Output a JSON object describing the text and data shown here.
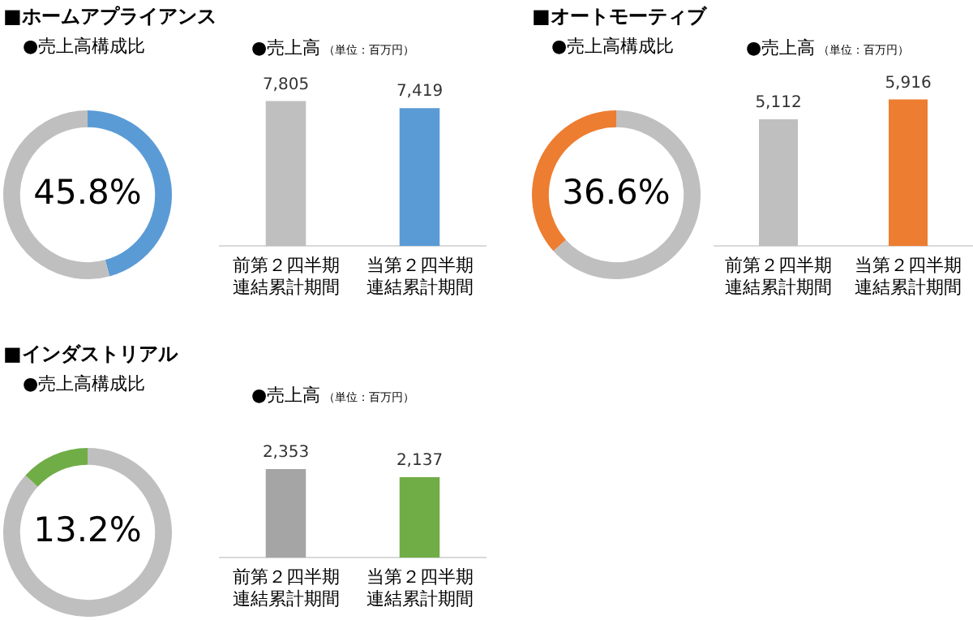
{
  "chart_data": [
    {
      "type": "donut",
      "title": "■ホームアプライアンス",
      "subtitle": "●売上高構成比",
      "categories": [
        null,
        null
      ],
      "values": [
        45.8,
        54.2
      ],
      "colors": [
        "#5b9bd5",
        "#bfbfbf"
      ],
      "value_labels": [
        "45.8%",
        null
      ]
    },
    {
      "type": "bar",
      "title": "●売上高",
      "subtitle": "（単位：百万円）",
      "categories": [
        "前第２四半期連結累計期間",
        "当第２四半期連結累計期間"
      ],
      "values": [
        7805,
        7419
      ],
      "colors": [
        "#bfbfbf",
        "#5b9bd5"
      ],
      "value_labels": [
        "7,805",
        "7,419"
      ]
    },
    {
      "type": "donut",
      "title": "■オートモーティブ",
      "subtitle": "●売上高構成比",
      "categories": [
        null,
        null
      ],
      "values": [
        63.4,
        36.6
      ],
      "colors": [
        "#bfbfbf",
        "#ed7d31"
      ],
      "value_labels": [
        null,
        "36.6%"
      ]
    },
    {
      "type": "bar",
      "title": "●売上高",
      "subtitle": "（単位：百万円）",
      "categories": [
        "前第２四半期連結累計期間",
        "当第２四半期連結累計期間"
      ],
      "values": [
        5112,
        5916
      ],
      "colors": [
        "#bfbfbf",
        "#ed7d31"
      ],
      "value_labels": [
        "5,112",
        "5,916"
      ]
    },
    {
      "type": "donut",
      "title": "■インダストリアル",
      "subtitle": "●売上高構成比",
      "categories": [
        null,
        null
      ],
      "values": [
        86.8,
        13.2
      ],
      "colors": [
        "#bfbfbf",
        "#70ad47"
      ],
      "value_labels": [
        null,
        "13.2%"
      ]
    },
    {
      "type": "bar",
      "title": "●売上高",
      "subtitle": "（単位：百万円）",
      "categories": [
        "前第２四半期連結累計期間",
        "当第２四半期連結累計期間"
      ],
      "values": [
        2353,
        2137
      ],
      "colors": [
        "#a5a5a5",
        "#70ad47"
      ],
      "value_labels": [
        "2,353",
        "2,137"
      ]
    }
  ]
}
